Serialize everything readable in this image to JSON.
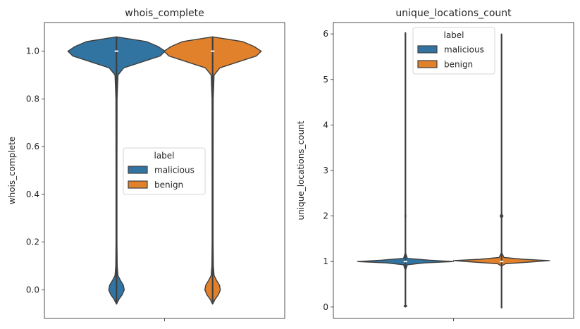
{
  "chart_data": [
    {
      "type": "violin",
      "title": "whois_complete",
      "xlabel": "",
      "ylabel": "whois_complete",
      "ylim": [
        -0.12,
        1.12
      ],
      "yticks": [
        0.0,
        0.2,
        0.4,
        0.6,
        0.8,
        1.0
      ],
      "ytick_labels": [
        "0.0",
        "0.2",
        "0.4",
        "0.6",
        "0.8",
        "1.0"
      ],
      "legend": {
        "title": "label",
        "placement": "center-right",
        "entries": [
          "malicious",
          "benign"
        ]
      },
      "series": [
        {
          "name": "malicious",
          "color": "#3274a1",
          "min": -0.06,
          "max": 1.06,
          "median": 1.0,
          "density": [
            [
              -0.06,
              0.0
            ],
            [
              -0.04,
              0.05
            ],
            [
              -0.02,
              0.12
            ],
            [
              0.0,
              0.16
            ],
            [
              0.02,
              0.14
            ],
            [
              0.04,
              0.08
            ],
            [
              0.06,
              0.03
            ],
            [
              0.1,
              0.015
            ],
            [
              0.2,
              0.01
            ],
            [
              0.5,
              0.01
            ],
            [
              0.8,
              0.012
            ],
            [
              0.9,
              0.03
            ],
            [
              0.93,
              0.15
            ],
            [
              0.96,
              0.6
            ],
            [
              0.98,
              0.9
            ],
            [
              1.0,
              1.0
            ],
            [
              1.02,
              0.85
            ],
            [
              1.04,
              0.62
            ],
            [
              1.06,
              0.0
            ]
          ]
        },
        {
          "name": "benign",
          "color": "#e1812c",
          "min": -0.06,
          "max": 1.06,
          "median": 1.0,
          "density": [
            [
              -0.06,
              0.0
            ],
            [
              -0.04,
              0.05
            ],
            [
              -0.02,
              0.12
            ],
            [
              0.0,
              0.16
            ],
            [
              0.02,
              0.14
            ],
            [
              0.04,
              0.08
            ],
            [
              0.06,
              0.03
            ],
            [
              0.1,
              0.015
            ],
            [
              0.2,
              0.01
            ],
            [
              0.5,
              0.01
            ],
            [
              0.8,
              0.012
            ],
            [
              0.9,
              0.03
            ],
            [
              0.93,
              0.15
            ],
            [
              0.96,
              0.6
            ],
            [
              0.98,
              0.9
            ],
            [
              1.0,
              1.0
            ],
            [
              1.02,
              0.85
            ],
            [
              1.04,
              0.62
            ],
            [
              1.06,
              0.0
            ]
          ]
        }
      ]
    },
    {
      "type": "violin",
      "title": "unique_locations_count",
      "xlabel": "",
      "ylabel": "unique_locations_count",
      "ylim": [
        -0.25,
        6.25
      ],
      "yticks": [
        0,
        1,
        2,
        3,
        4,
        5,
        6
      ],
      "ytick_labels": [
        "0",
        "1",
        "2",
        "3",
        "4",
        "5",
        "6"
      ],
      "legend": {
        "title": "label",
        "placement": "top-center",
        "entries": [
          "malicious",
          "benign"
        ]
      },
      "series": [
        {
          "name": "malicious",
          "color": "#3274a1",
          "min": 0.0,
          "max": 6.03,
          "median": 1.0,
          "density": [
            [
              0.0,
              0.0
            ],
            [
              0.02,
              0.03
            ],
            [
              0.05,
              0.0
            ],
            [
              0.8,
              0.0
            ],
            [
              0.93,
              0.04
            ],
            [
              0.97,
              0.4
            ],
            [
              1.0,
              1.0
            ],
            [
              1.03,
              0.5
            ],
            [
              1.07,
              0.04
            ],
            [
              1.2,
              0.0
            ],
            [
              1.95,
              0.0
            ],
            [
              2.0,
              0.01
            ],
            [
              2.05,
              0.0
            ],
            [
              6.03,
              0.0
            ]
          ]
        },
        {
          "name": "benign",
          "color": "#e1812c",
          "min": -0.02,
          "max": 6.0,
          "median": 1.0,
          "density": [
            [
              -0.02,
              0.0
            ],
            [
              0.9,
              0.0
            ],
            [
              0.95,
              0.08
            ],
            [
              0.99,
              0.6
            ],
            [
              1.02,
              1.0
            ],
            [
              1.05,
              0.45
            ],
            [
              1.09,
              0.05
            ],
            [
              1.2,
              0.0
            ],
            [
              1.95,
              0.0
            ],
            [
              2.0,
              0.03
            ],
            [
              2.05,
              0.0
            ],
            [
              6.0,
              0.0
            ]
          ]
        }
      ]
    }
  ]
}
